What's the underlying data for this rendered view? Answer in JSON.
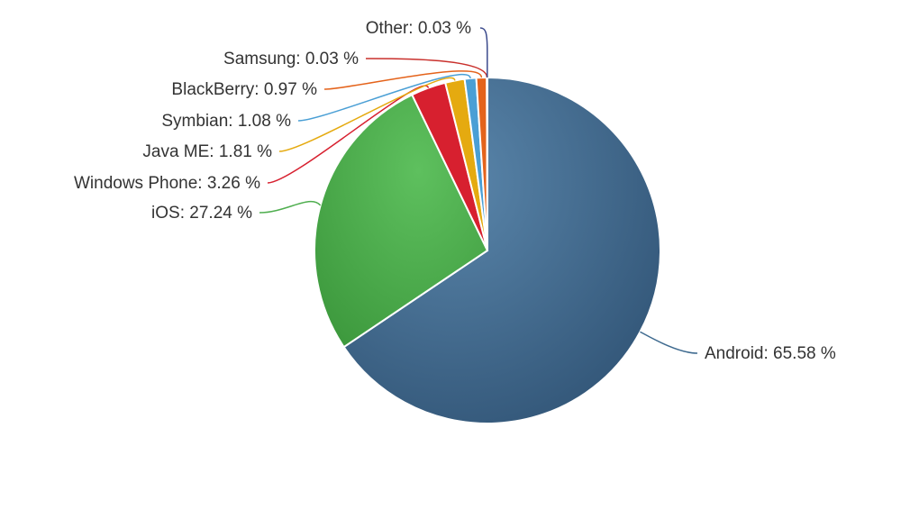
{
  "chart_data": {
    "type": "pie",
    "title": "",
    "value_suffix": " %",
    "legend": "none",
    "slices": [
      {
        "name": "Android",
        "value": 65.58,
        "color": "#3E6A8F"
      },
      {
        "name": "iOS",
        "value": 27.24,
        "color": "#4FAE4F"
      },
      {
        "name": "Windows Phone",
        "value": 3.26,
        "color": "#D7202F"
      },
      {
        "name": "Java ME",
        "value": 1.81,
        "color": "#E5AA10"
      },
      {
        "name": "Symbian",
        "value": 1.08,
        "color": "#4A9FD5"
      },
      {
        "name": "BlackBerry",
        "value": 0.97,
        "color": "#E4631B"
      },
      {
        "name": "Samsung",
        "value": 0.03,
        "color": "#C9302C"
      },
      {
        "name": "Other",
        "value": 0.03,
        "color": "#3B4A8C"
      }
    ]
  }
}
